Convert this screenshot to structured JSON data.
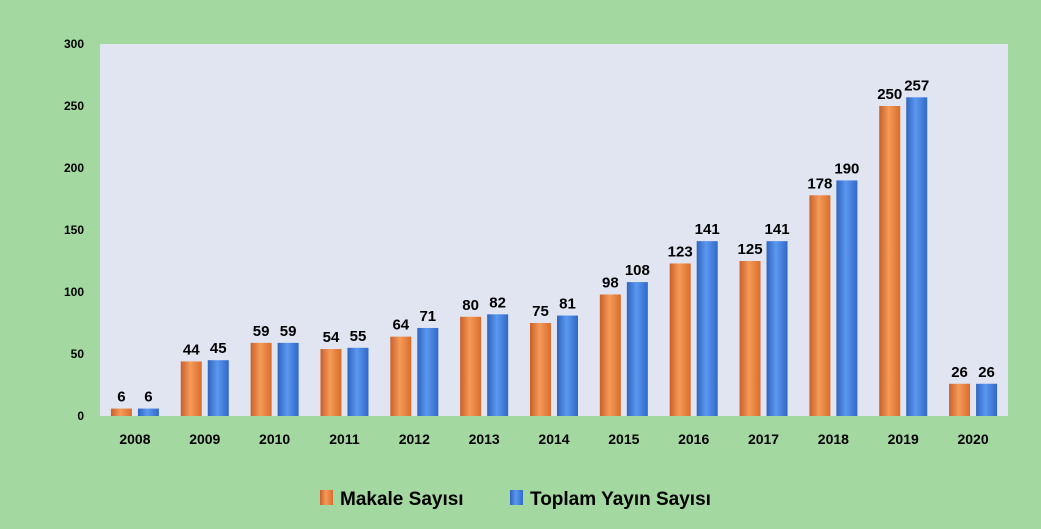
{
  "chart_data": {
    "type": "bar",
    "title": "",
    "xlabel": "",
    "ylabel": "",
    "categories": [
      "2008",
      "2009",
      "2010",
      "2011",
      "2012",
      "2013",
      "2014",
      "2015",
      "2016",
      "2017",
      "2018",
      "2019",
      "2020"
    ],
    "series": [
      {
        "name": "Makale Sayısı",
        "color": "#f07f35",
        "values": [
          6,
          44,
          59,
          54,
          64,
          80,
          75,
          98,
          123,
          125,
          178,
          250,
          26
        ]
      },
      {
        "name": "Toplam Yayın Sayısı",
        "color": "#3f7fdb",
        "values": [
          6,
          45,
          59,
          55,
          71,
          82,
          81,
          108,
          141,
          141,
          190,
          257,
          26
        ]
      }
    ],
    "ylim": [
      0,
      300
    ],
    "yticks": [
      0,
      50,
      100,
      150,
      200,
      250,
      300
    ],
    "grid": false,
    "legend_position": "bottom-center",
    "colors": {
      "page_background": "#a3d9a0",
      "plot_background": "#e1e5f1"
    }
  }
}
